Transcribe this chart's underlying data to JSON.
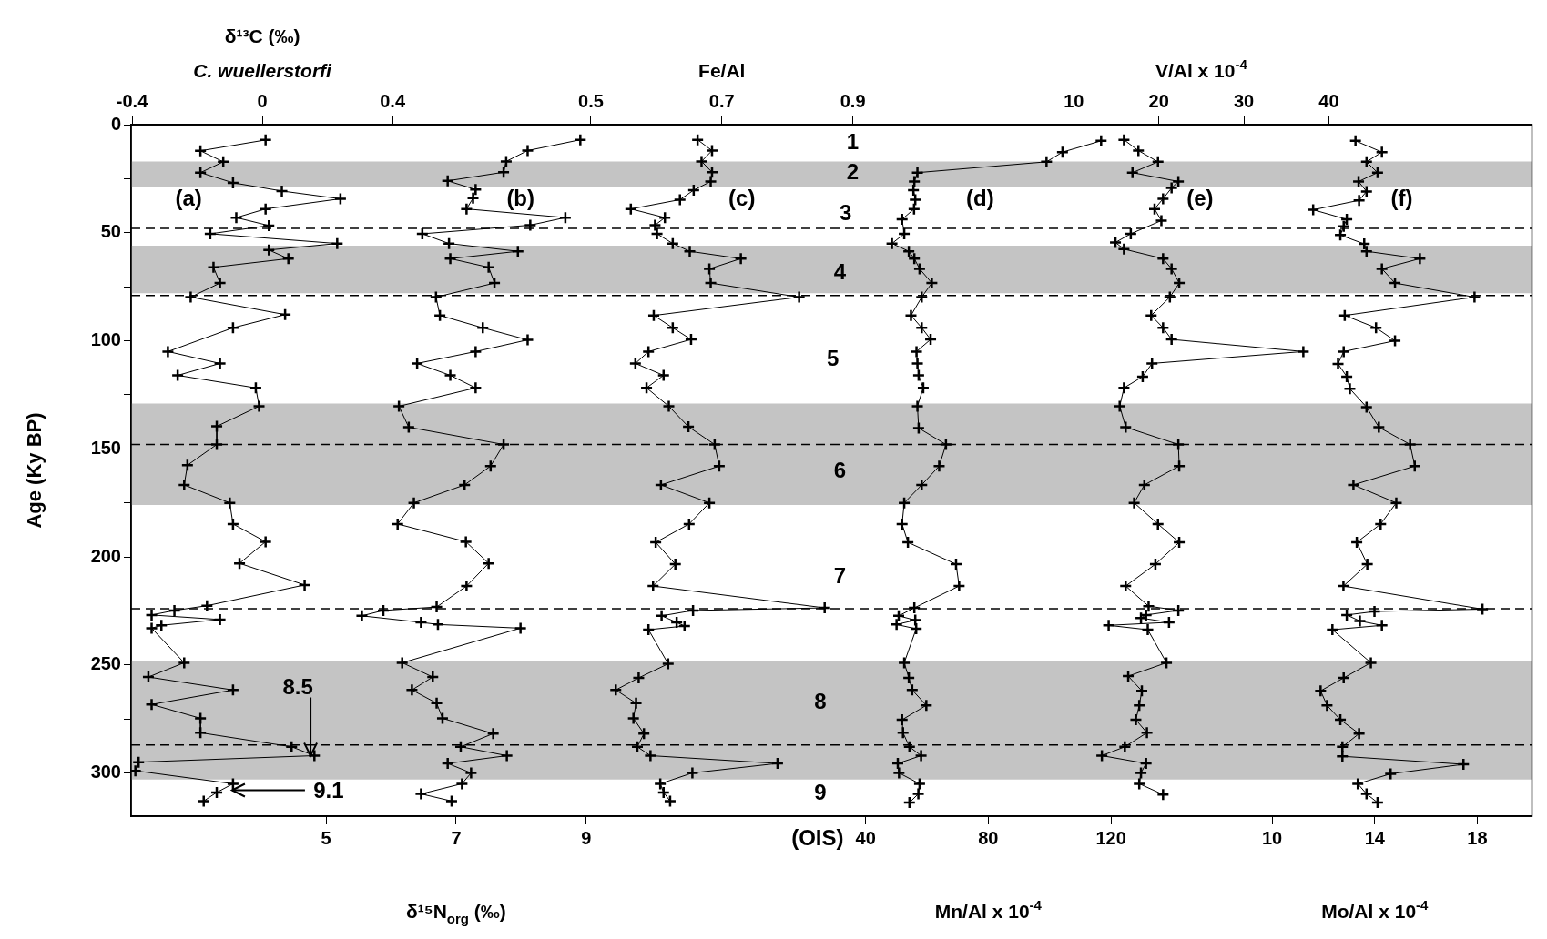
{
  "chart_data": [
    {
      "type": "line",
      "ylabel": "Age (Ky BP)",
      "xlabel": "δ¹³C (‰)\nC. wuellerstorfi",
      "xlim": [
        -0.403,
        3.9
      ],
      "xticks": [
        -0.4,
        0,
        0.4
      ],
      "ylim": [
        320,
        0
      ],
      "yticks": [
        0,
        {
          "value": 25,
          "label": null
        },
        50,
        {
          "value": 75,
          "label": null
        },
        100,
        {
          "value": 125,
          "label": null
        },
        150,
        {
          "value": 175,
          "label": null
        },
        200,
        {
          "value": 225,
          "label": null
        },
        250,
        {
          "value": 275,
          "label": null
        },
        300
      ],
      "grid": false,
      "legend": false,
      "marker": "cross",
      "line_style": "solid",
      "bands": [
        {
          "axis": "y",
          "from": 17,
          "to": 29,
          "color": "#c4c4c4"
        },
        {
          "axis": "y",
          "from": 56,
          "to": 78,
          "color": "#c4c4c4"
        },
        {
          "axis": "y",
          "from": 129,
          "to": 176,
          "color": "#c4c4c4"
        },
        {
          "axis": "y",
          "from": 248,
          "to": 303,
          "color": "#c4c4c4"
        }
      ],
      "ref_lines": [
        {
          "axis": "y",
          "value": 48,
          "color": "#000000",
          "line_style": "dashed"
        },
        {
          "axis": "y",
          "value": 79,
          "color": "#000000",
          "line_style": "dashed"
        },
        {
          "axis": "y",
          "value": 148,
          "color": "#000000",
          "line_style": "dashed"
        },
        {
          "axis": "y",
          "value": 224,
          "color": "#000000",
          "line_style": "dashed"
        },
        {
          "axis": "y",
          "value": 287,
          "color": "#000000",
          "line_style": "dashed"
        }
      ],
      "annotations": [
        "(a)",
        "1",
        "2",
        "3",
        "4",
        "5",
        "6",
        "7",
        "8",
        "9",
        "8.5",
        "9.1",
        "(OIS)"
      ],
      "series": [
        {
          "color": "#000000",
          "x": [
            0.01,
            -0.19,
            -0.12,
            -0.19,
            -0.09,
            0.06,
            0.24,
            0.01,
            -0.08,
            0.02,
            -0.16,
            0.23,
            0.02,
            0.08,
            -0.15,
            -0.13,
            -0.22,
            0.07,
            -0.09,
            -0.29,
            -0.13,
            -0.26,
            -0.02,
            -0.01,
            -0.14,
            -0.14,
            -0.23,
            -0.24,
            -0.1,
            -0.09,
            0.01,
            -0.07,
            0.13,
            -0.17,
            -0.27,
            -0.34,
            -0.13,
            -0.31,
            -0.34,
            -0.24,
            -0.35,
            -0.09,
            -0.34,
            -0.19,
            -0.19,
            0.09,
            0.16,
            -0.38,
            -0.39,
            -0.09,
            -0.14,
            -0.18
          ],
          "values": [
            7.1,
            12.1,
            17.2,
            22.2,
            26.9,
            30.7,
            34.3,
            39,
            43,
            46.7,
            50.5,
            55,
            58,
            62,
            66,
            73.3,
            79.8,
            87.9,
            94,
            105,
            110.5,
            116,
            121.8,
            130.3,
            139.6,
            148,
            157.6,
            166.7,
            175,
            184.8,
            193,
            203,
            213,
            222.6,
            224.8,
            226.9,
            229,
            231.7,
            233,
            249,
            255.6,
            261.6,
            268.3,
            274.7,
            281.4,
            287.9,
            292,
            295,
            299,
            305,
            309,
            313
          ]
        }
      ]
    },
    {
      "type": "line",
      "xlabel": "δ¹⁵N$_{org}$ (‰)",
      "xlim": [
        2.0,
        23.55
      ],
      "xticks": [
        5,
        7,
        9
      ],
      "ylim": [
        320,
        0
      ],
      "tick_labels": "x",
      "marker": "cross",
      "line_style": "solid",
      "annotations": [
        "(b)"
      ],
      "series": [
        {
          "color": "#000000",
          "x": [
            8.91,
            8.1,
            7.77,
            7.73,
            6.87,
            7.3,
            7.26,
            7.16,
            8.68,
            8.14,
            6.48,
            6.89,
            7.95,
            6.91,
            7.5,
            7.59,
            6.69,
            6.75,
            7.41,
            8.1,
            7.3,
            6.4,
            6.91,
            7.3,
            6.12,
            6.27,
            7.73,
            7.53,
            7.13,
            6.35,
            6.1,
            7.15,
            7.5,
            7.16,
            6.7,
            5.88,
            5.55,
            6.46,
            6.72,
            7.99,
            6.17,
            6.64,
            6.32,
            6.7,
            6.79,
            7.57,
            7.07,
            7.78,
            6.87,
            7.23,
            7.09,
            6.46,
            6.93
          ],
          "values": [
            7,
            12,
            17,
            22,
            26,
            30,
            34,
            39,
            43,
            46.5,
            50.5,
            55,
            58.6,
            62,
            66,
            73.3,
            79.8,
            88.3,
            94,
            99.6,
            105,
            110.5,
            116,
            121.8,
            130.3,
            140,
            148,
            158,
            166.7,
            175,
            184.8,
            193,
            203,
            213.5,
            223.2,
            224.8,
            227.3,
            230.3,
            231.3,
            233,
            249,
            255.6,
            261.6,
            267.7,
            274.7,
            281.8,
            287.9,
            292,
            295.6,
            300,
            305,
            309.7,
            313
          ]
        }
      ]
    },
    {
      "type": "line",
      "xlabel": "Fe/Al",
      "xlim": [
        -0.202,
        1.937
      ],
      "xticks": [
        0.5,
        0.7,
        0.9
      ],
      "ylim": [
        320,
        0
      ],
      "tick_labels": "x",
      "marker": "cross",
      "line_style": "solid",
      "annotations": [
        "(c)"
      ],
      "series": [
        {
          "color": "#000000",
          "x": [
            0.663,
            0.685,
            0.669,
            0.685,
            0.683,
            0.657,
            0.636,
            0.561,
            0.613,
            0.598,
            0.601,
            0.625,
            0.651,
            0.729,
            0.681,
            0.683,
            0.818,
            0.596,
            0.625,
            0.653,
            0.588,
            0.568,
            0.611,
            0.585,
            0.619,
            0.649,
            0.689,
            0.696,
            0.607,
            0.681,
            0.65,
            0.599,
            0.629,
            0.595,
            0.857,
            0.656,
            0.608,
            0.631,
            0.643,
            0.588,
            0.618,
            0.573,
            0.538,
            0.569,
            0.565,
            0.581,
            0.571,
            0.591,
            0.785,
            0.655,
            0.606,
            0.611,
            0.621
          ],
          "values": [
            7,
            12,
            17,
            22,
            26.3,
            30.3,
            34.7,
            39,
            43,
            46.5,
            50.5,
            55,
            58.6,
            62,
            66.7,
            73.3,
            79.8,
            88.3,
            94,
            99.4,
            105,
            110.5,
            116,
            121.8,
            130.3,
            139.8,
            148,
            158,
            166.7,
            175,
            184.8,
            193.3,
            203.4,
            213.5,
            223.6,
            224.8,
            227.3,
            230.3,
            232,
            233.7,
            249.5,
            256,
            261.6,
            267.7,
            274.7,
            281.8,
            287.9,
            292,
            295.6,
            300,
            305,
            309,
            313
          ]
        }
      ]
    },
    {
      "type": "line",
      "xlabel": "Mn/Al x 10$^{-4}$",
      "xlim": [
        -199.5,
        257.3
      ],
      "xticks": [
        40,
        80,
        120
      ],
      "ylim": [
        320,
        0
      ],
      "tick_labels": "x",
      "marker": "cross",
      "line_style": "solid",
      "annotations": [
        "(d)"
      ],
      "series": [
        {
          "color": "#000000",
          "x": [
            116.8,
            104.2,
            99.0,
            56.9,
            55.9,
            55.6,
            56.2,
            55.8,
            51.9,
            52.6,
            48.6,
            54.1,
            55.9,
            57.6,
            61.6,
            58.3,
            54.8,
            58.3,
            61.2,
            56.6,
            56.9,
            57.3,
            58.8,
            56.9,
            57.3,
            66.2,
            64.0,
            58.3,
            52.6,
            51.9,
            53.8,
            69.5,
            70.5,
            55.9,
            50.8,
            56.2,
            50.1,
            56.5,
            52.6,
            54.1,
            55.2,
            59.8,
            51.9,
            52.2,
            54.3,
            58.1,
            50.5,
            50.9,
            57.6,
            57.2,
            54.3
          ],
          "values": [
            7.5,
            12.7,
            17.2,
            22.2,
            26.3,
            30.3,
            34.7,
            39,
            43.8,
            50.5,
            55,
            58.6,
            62,
            66.7,
            73.3,
            79.8,
            88.3,
            94,
            99.4,
            105,
            110.5,
            116,
            121.8,
            130.3,
            140.4,
            148,
            158,
            166.7,
            175,
            184.8,
            193.3,
            203.4,
            213.5,
            223.6,
            227.3,
            229.3,
            231.3,
            233.3,
            249,
            256,
            261.6,
            268.7,
            275.4,
            281.4,
            287.9,
            292,
            295.6,
            300,
            305,
            309.7,
            313.7
          ]
        }
      ]
    },
    {
      "type": "line",
      "xlabel": "V/Al x 10$^{-4}$",
      "xlim": [
        -100.9,
        63.9
      ],
      "xticks": [
        10,
        20,
        30,
        40
      ],
      "ylim": [
        320,
        0
      ],
      "tick_labels": "x",
      "marker": "cross",
      "line_style": "solid",
      "annotations": [
        "(e)"
      ],
      "series": [
        {
          "color": "#000000",
          "x": [
            15.9,
            17.6,
            19.9,
            16.9,
            22.3,
            21.5,
            20.5,
            19.5,
            20.3,
            16.7,
            14.9,
            15.9,
            20.5,
            21.5,
            22.4,
            21.3,
            19.1,
            20.5,
            21.5,
            37.0,
            19.2,
            18.1,
            15.9,
            15.4,
            16.1,
            22.3,
            22.4,
            18.3,
            17.1,
            19.9,
            22.4,
            19.6,
            16.1,
            18.8,
            22.3,
            18.5,
            17.9,
            21.2,
            14.1,
            18.7,
            20.9,
            16.4,
            18.0,
            17.7,
            17.3,
            18.6,
            16.0,
            13.3,
            18.5,
            17.9,
            17.7,
            20.5
          ],
          "values": [
            7,
            12,
            17.2,
            22.2,
            26.3,
            29.3,
            34.3,
            39,
            44.4,
            50.5,
            54.5,
            57.6,
            62,
            66.7,
            73.3,
            79.8,
            88.3,
            94,
            99.4,
            105,
            110.5,
            116.6,
            121.8,
            130.3,
            140,
            148,
            158,
            166.7,
            175,
            184.8,
            193.3,
            203.4,
            213.5,
            222.8,
            224.8,
            226.9,
            228.3,
            230.3,
            231.7,
            233.7,
            249,
            255.2,
            262,
            268.7,
            275.4,
            281.4,
            287.9,
            292,
            295.6,
            300,
            305,
            310
          ]
        }
      ]
    },
    {
      "type": "line",
      "xlabel": "Mo/Al x 10$^{-4}$",
      "xlim": [
        -34.48,
        20.13
      ],
      "xticks": [
        10,
        14,
        18
      ],
      "ylim": [
        320,
        0
      ],
      "tick_labels": "x",
      "marker": "cross",
      "line_style": "solid",
      "annotations": [
        "(f)"
      ],
      "series": [
        {
          "color": "#000000",
          "x": [
            13.25,
            14.28,
            13.68,
            14.11,
            13.37,
            13.68,
            13.39,
            11.6,
            12.91,
            12.79,
            12.66,
            13.59,
            13.68,
            15.76,
            14.28,
            14.79,
            17.89,
            12.83,
            14.05,
            14.79,
            12.79,
            12.57,
            12.91,
            13.03,
            13.68,
            14.16,
            15.38,
            15.56,
            13.17,
            14.84,
            14.23,
            13.3,
            13.71,
            12.78,
            18.2,
            13.99,
            12.91,
            13.42,
            14.28,
            12.35,
            13.85,
            12.79,
            11.89,
            12.14,
            12.66,
            13.39,
            12.74,
            12.74,
            17.46,
            14.62,
            13.34,
            13.68,
            14.11
          ],
          "values": [
            7.5,
            12.7,
            17.2,
            22.2,
            26.3,
            30.9,
            35,
            39.4,
            43.8,
            47,
            51.1,
            55.2,
            58.6,
            62,
            66.7,
            73.3,
            79.8,
            88.3,
            94,
            100,
            105,
            110.7,
            116.6,
            122.2,
            130.7,
            140,
            148,
            158,
            166.7,
            175,
            184.8,
            193.3,
            203.4,
            213.5,
            224.2,
            225.3,
            226.9,
            229.7,
            231.7,
            233.7,
            249,
            256,
            262,
            268.7,
            275.4,
            281.8,
            287.9,
            292.3,
            296,
            300.4,
            305,
            309.7,
            313.7
          ]
        }
      ]
    }
  ]
}
